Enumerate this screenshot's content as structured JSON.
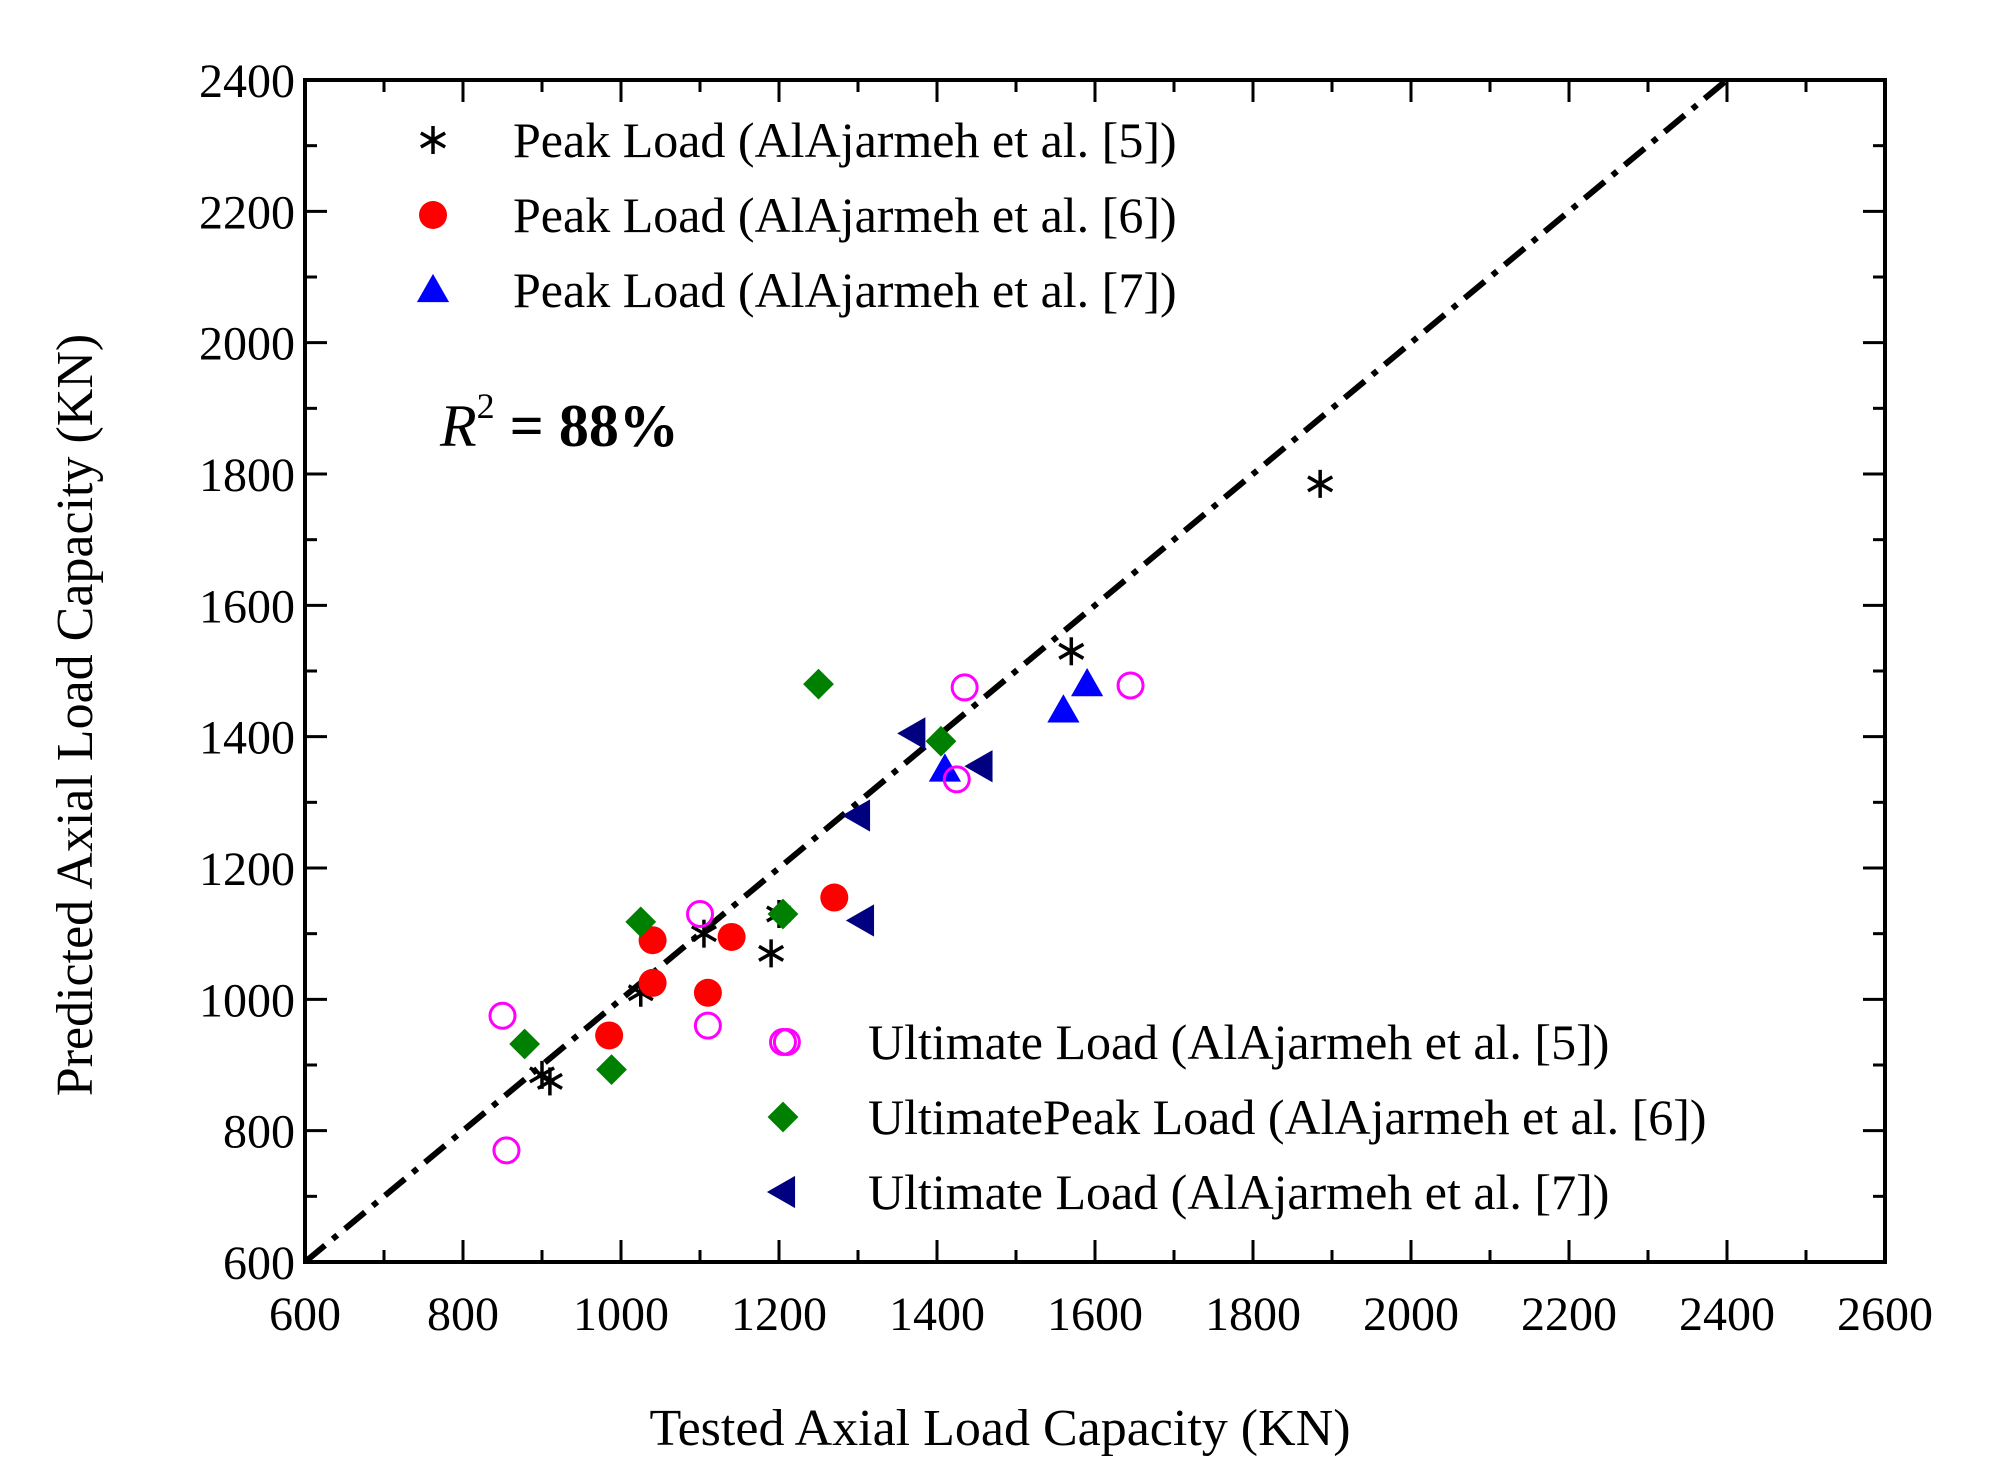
{
  "chart_data": {
    "type": "scatter",
    "title": "",
    "xlabel": "Tested Axial Load Capacity (KN)",
    "ylabel": "Predicted Axial Load Capacity (KN)",
    "xlim": [
      600,
      2600
    ],
    "ylim": [
      600,
      2400
    ],
    "x_ticks": [
      600,
      800,
      1000,
      1200,
      1400,
      1600,
      1800,
      2000,
      2200,
      2400,
      2600
    ],
    "y_ticks": [
      600,
      800,
      1000,
      1200,
      1400,
      1600,
      1800,
      2000,
      2200,
      2400
    ],
    "grid": false,
    "annotation": {
      "prefix": "R",
      "superscript": "2",
      "suffix": " = 88%"
    },
    "reference_line": {
      "name": "1:1 line",
      "from": [
        600,
        600
      ],
      "to": [
        2400,
        2400
      ],
      "style": "dash-dot",
      "color": "#000000"
    },
    "legend_upper": {
      "placement": "top-left",
      "entries": [
        {
          "series_index": 0,
          "label": "Peak Load (AlAjarmeh et al. [5])"
        },
        {
          "series_index": 1,
          "label": "Peak Load (AlAjarmeh et al. [6])"
        },
        {
          "series_index": 2,
          "label": "Peak Load (AlAjarmeh et al. [7])"
        }
      ]
    },
    "legend_lower": {
      "placement": "bottom-right",
      "entries": [
        {
          "series_index": 3,
          "label": "Ultimate Load (AlAjarmeh et al. [5])"
        },
        {
          "series_index": 4,
          "label": "UltimatePeak Load (AlAjarmeh et al. [6])"
        },
        {
          "series_index": 5,
          "label": "Ultimate Load (AlAjarmeh et al. [7])"
        }
      ]
    },
    "series": [
      {
        "name": "Peak Load (AlAjarmeh et al. [5])",
        "marker": "asterisk",
        "color": "#000000",
        "points": [
          [
            900,
            885
          ],
          [
            910,
            875
          ],
          [
            1025,
            1010
          ],
          [
            1105,
            1100
          ],
          [
            1190,
            1070
          ],
          [
            1200,
            1130
          ],
          [
            1570,
            1530
          ],
          [
            1885,
            1785
          ]
        ]
      },
      {
        "name": "Peak Load (AlAjarmeh et al. [6])",
        "marker": "circle",
        "color": "#ff0000",
        "points": [
          [
            985,
            945
          ],
          [
            1040,
            1025
          ],
          [
            1040,
            1090
          ],
          [
            1110,
            1010
          ],
          [
            1140,
            1095
          ],
          [
            1270,
            1155
          ]
        ]
      },
      {
        "name": "Peak Load (AlAjarmeh et al. [7])",
        "marker": "triangle-up",
        "color": "#0000ff",
        "points": [
          [
            1410,
            1350
          ],
          [
            1560,
            1440
          ],
          [
            1590,
            1480
          ]
        ]
      },
      {
        "name": "Ultimate Load (AlAjarmeh et al. [5])",
        "marker": "circle-open",
        "color": "#ff00ff",
        "points": [
          [
            850,
            975
          ],
          [
            855,
            770
          ],
          [
            1100,
            1130
          ],
          [
            1110,
            960
          ],
          [
            1210,
            935
          ],
          [
            1425,
            1335
          ],
          [
            1435,
            1475
          ],
          [
            1645,
            1478
          ]
        ]
      },
      {
        "name": "UltimatePeak Load (AlAjarmeh et al. [6])",
        "marker": "diamond",
        "color": "#008000",
        "points": [
          [
            878,
            932
          ],
          [
            988,
            893
          ],
          [
            1025,
            1118
          ],
          [
            1205,
            1130
          ],
          [
            1250,
            1480
          ],
          [
            1405,
            1393
          ]
        ]
      },
      {
        "name": "Ultimate Load (AlAjarmeh et al. [7])",
        "marker": "triangle-left",
        "color": "#000080",
        "points": [
          [
            1300,
            1280
          ],
          [
            1305,
            1120
          ],
          [
            1370,
            1405
          ],
          [
            1455,
            1355
          ]
        ]
      }
    ]
  }
}
